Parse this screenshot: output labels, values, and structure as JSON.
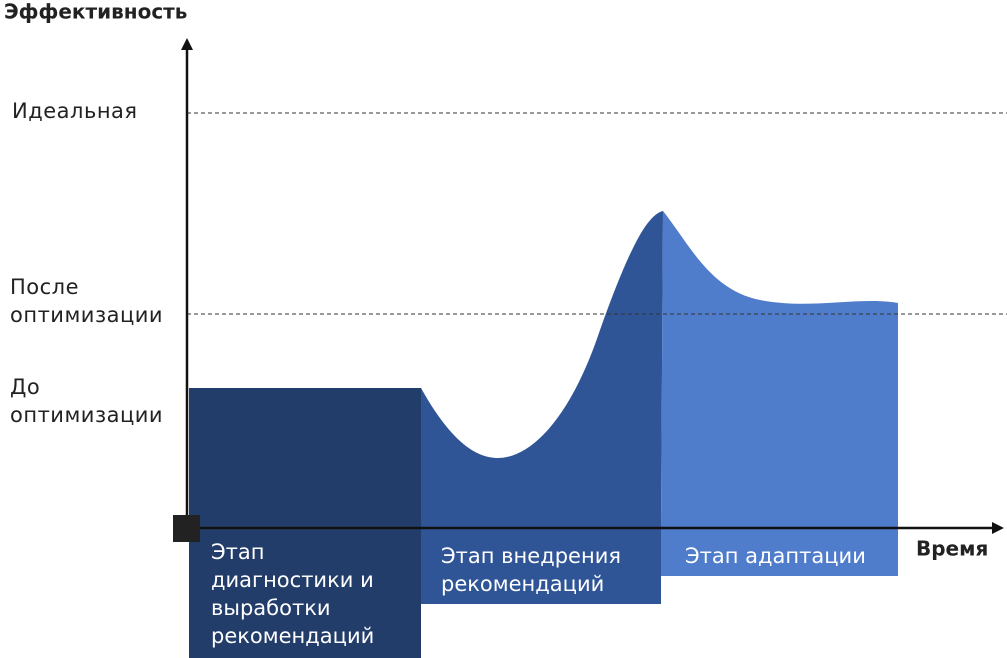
{
  "y_axis_title": "Эффективность",
  "x_axis_title": "Время",
  "levels": [
    {
      "lines": [
        "Идеальная"
      ]
    },
    {
      "lines": [
        "После",
        "оптимизации"
      ]
    },
    {
      "lines": [
        "До",
        "оптимизации"
      ]
    }
  ],
  "stages": [
    {
      "lines": [
        "Этап",
        "диагностики и",
        "выработки",
        "рекомендаций"
      ]
    },
    {
      "lines": [
        "Этап внедрения",
        "рекомендаций"
      ]
    },
    {
      "lines": [
        "Этап адаптации"
      ]
    }
  ]
}
